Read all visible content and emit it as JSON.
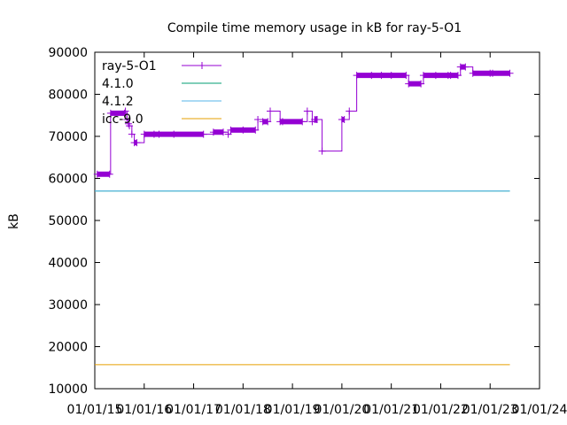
{
  "chart_data": {
    "type": "line",
    "title": "Compile time memory usage in kB for ray-5-O1",
    "xlabel": "",
    "ylabel": "kB",
    "ylim": [
      10000,
      90000
    ],
    "yticks": [
      10000,
      20000,
      30000,
      40000,
      50000,
      60000,
      70000,
      80000,
      90000
    ],
    "xlim": [
      0,
      9
    ],
    "x_tick_labels": [
      "01/01/15",
      "01/01/16",
      "01/01/17",
      "01/01/18",
      "01/01/19",
      "01/01/20",
      "01/01/21",
      "01/01/22",
      "01/01/23",
      "01/01/24"
    ],
    "grid": false,
    "legend_position": "top-left",
    "series": [
      {
        "name": "ray-5-O1",
        "color": "#9400d3",
        "marker": "plus",
        "x": [
          0.05,
          0.3,
          0.32,
          0.6,
          0.62,
          0.65,
          0.68,
          0.7,
          0.75,
          0.8,
          0.85,
          1.0,
          1.2,
          1.3,
          1.6,
          2.2,
          2.4,
          2.6,
          2.7,
          2.75,
          3.0,
          3.25,
          3.3,
          3.4,
          3.5,
          3.55,
          3.75,
          3.8,
          4.2,
          4.3,
          4.4,
          4.45,
          4.48,
          4.5,
          4.6,
          5.0,
          5.05,
          5.15,
          5.3,
          5.6,
          5.8,
          6.0,
          6.3,
          6.35,
          6.6,
          6.65,
          6.9,
          7.15,
          7.2,
          7.35,
          7.4,
          7.5,
          7.65,
          8.0,
          8.05,
          8.4
        ],
        "y": [
          61000,
          61000,
          75500,
          75500,
          76000,
          74000,
          73000,
          72500,
          70500,
          68500,
          68500,
          70500,
          70500,
          70500,
          70500,
          70500,
          71000,
          71000,
          70500,
          71500,
          71500,
          71500,
          74000,
          73500,
          73500,
          76000,
          73500,
          73500,
          73500,
          76000,
          73500,
          74000,
          74000,
          74000,
          66500,
          74000,
          74000,
          76000,
          84500,
          84500,
          84500,
          84500,
          84500,
          82500,
          82500,
          84500,
          84500,
          84500,
          84500,
          84500,
          86500,
          86500,
          85000,
          85000,
          85000,
          85000
        ]
      },
      {
        "name": "4.1.0",
        "color": "#009e73",
        "x": [
          0.0,
          8.4
        ],
        "y": [
          57000,
          57000
        ]
      },
      {
        "name": "4.1.2",
        "color": "#56b4e9",
        "x": [
          0.0,
          8.4
        ],
        "y": [
          57000,
          57000
        ]
      },
      {
        "name": "icc-9.0",
        "color": "#e69f00",
        "x": [
          0.0,
          8.4
        ],
        "y": [
          15700,
          15700
        ]
      }
    ]
  }
}
